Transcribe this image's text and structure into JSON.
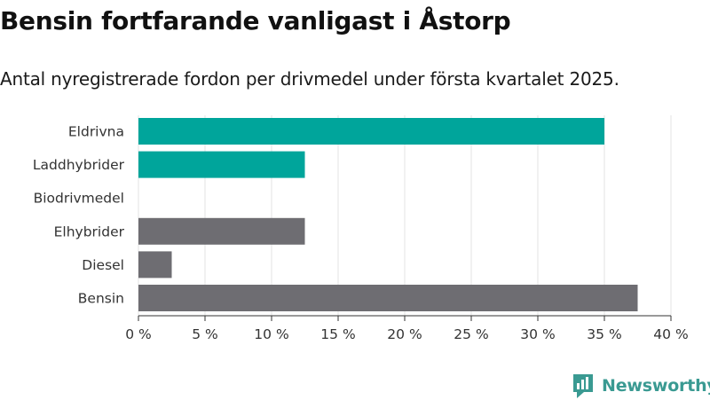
{
  "title": "Bensin fortfarande vanligast i Åstorp",
  "subtitle": "Antal nyregistrerade fordon per drivmedel under första kvartalet 2025.",
  "brand": {
    "name": "Newsworthy",
    "logo_icon": "newsworthy-logo-icon",
    "color": "#3a9a92"
  },
  "chart_data": {
    "type": "bar",
    "orientation": "horizontal",
    "categories": [
      "Eldrivna",
      "Laddhybrider",
      "Biodrivmedel",
      "Elhybrider",
      "Diesel",
      "Bensin"
    ],
    "values": [
      35.0,
      12.5,
      0,
      12.5,
      2.5,
      37.5
    ],
    "colors": [
      "#00a59b",
      "#00a59b",
      "#00a59b",
      "#6e6d72",
      "#6e6d72",
      "#6e6d72"
    ],
    "xlim": [
      0,
      40
    ],
    "xticks": [
      0,
      5,
      10,
      15,
      20,
      25,
      30,
      35,
      40
    ],
    "xtick_labels": [
      "0 %",
      "5 %",
      "10 %",
      "15 %",
      "20 %",
      "25 %",
      "30 %",
      "35 %",
      "40 %"
    ],
    "grid": "vertical",
    "unit": "%"
  }
}
